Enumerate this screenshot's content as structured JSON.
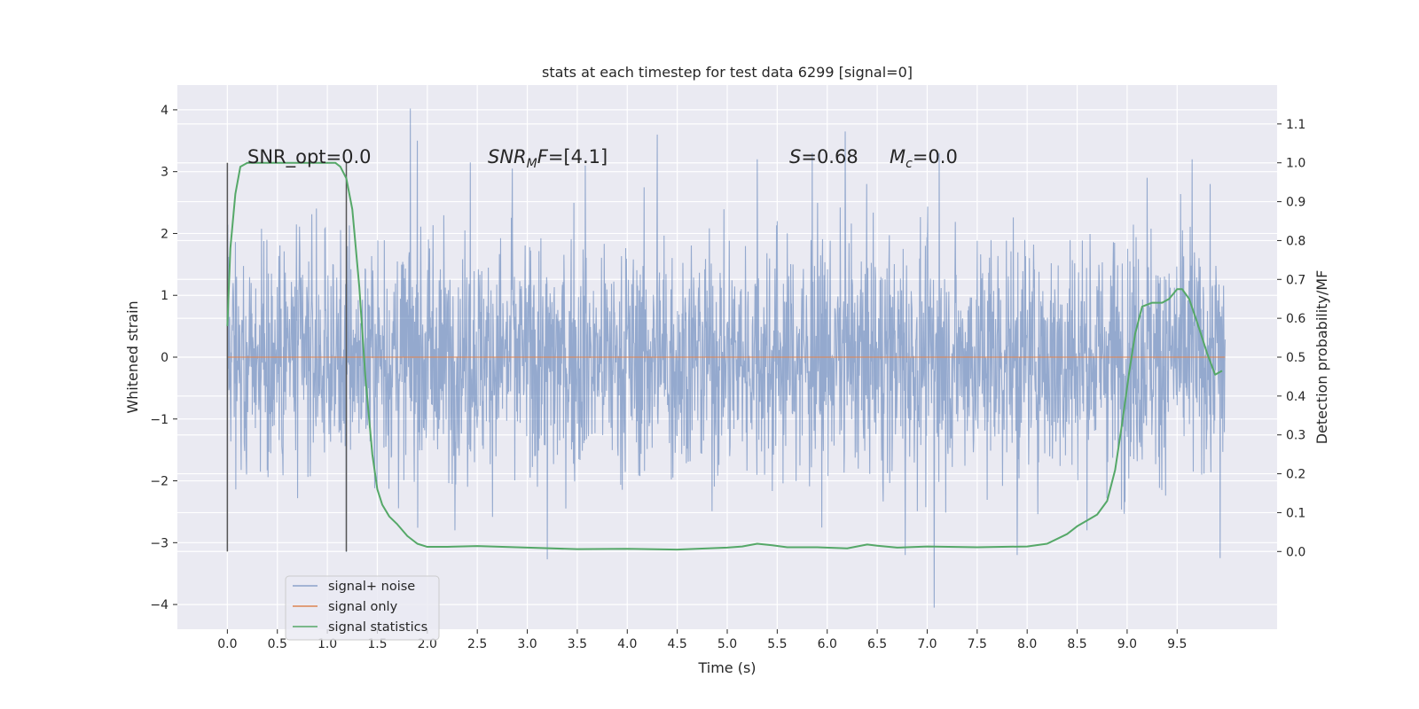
{
  "chart_data": {
    "type": "line",
    "title": "stats at each timestep for test data 6299 [signal=0]",
    "xlabel": "Time (s)",
    "ylabel_left": "Whitened strain",
    "ylabel_right": "Detection probability/MF",
    "xlim": [
      -0.5,
      10.5
    ],
    "ylim_left": [
      -4.4,
      4.4
    ],
    "ylim_right": [
      -0.2,
      1.2
    ],
    "x_ticks": [
      "0.0",
      "0.5",
      "1.0",
      "1.5",
      "2.0",
      "2.5",
      "3.0",
      "3.5",
      "4.0",
      "4.5",
      "5.0",
      "5.5",
      "6.0",
      "6.5",
      "7.0",
      "7.5",
      "8.0",
      "8.5",
      "9.0",
      "9.5"
    ],
    "y_ticks_left": [
      "4",
      "3",
      "2",
      "1",
      "0",
      "−1",
      "−2",
      "−3",
      "−4"
    ],
    "y_ticks_right": [
      "1.1",
      "1.0",
      "0.9",
      "0.8",
      "0.7",
      "0.6",
      "0.5",
      "0.4",
      "0.3",
      "0.2",
      "0.1",
      "0.0"
    ],
    "grid": true,
    "legend_position": "lower-left",
    "annotations": {
      "snr_opt": "SNR_opt=0.0",
      "snr_mf_label": "SNR",
      "snr_mf_sub": "M",
      "snr_mf_tail": "F",
      "snr_mf_value": "=[4.1]",
      "s_label": "S",
      "s_value": "=0.68",
      "mc_label": "M",
      "mc_sub": "c",
      "mc_value": "=0.0"
    },
    "markers_x": [
      0.0,
      1.19
    ],
    "series": [
      {
        "name": "signal+ noise",
        "color": "#4c72b0",
        "axis": "left",
        "x_range": [
          0.0,
          9.98
        ],
        "envelope_typical": [
          -1.3,
          1.3
        ],
        "extremes": [
          {
            "x": 0.0,
            "y": 3.1
          },
          {
            "x": 0.0,
            "y": -3.1
          },
          {
            "x": 1.19,
            "y": 3.15
          },
          {
            "x": 1.19,
            "y": -3.15
          },
          {
            "x": 1.83,
            "y": 4.02
          },
          {
            "x": 1.9,
            "y": 3.5
          },
          {
            "x": 2.43,
            "y": 3.15
          },
          {
            "x": 2.85,
            "y": 3.05
          },
          {
            "x": 3.2,
            "y": -3.27
          },
          {
            "x": 3.58,
            "y": 3.1
          },
          {
            "x": 4.3,
            "y": 3.6
          },
          {
            "x": 5.3,
            "y": 3.2
          },
          {
            "x": 5.85,
            "y": 3.3
          },
          {
            "x": 6.18,
            "y": 3.65
          },
          {
            "x": 6.78,
            "y": -3.2
          },
          {
            "x": 7.07,
            "y": -4.05
          },
          {
            "x": 7.12,
            "y": 3.3
          },
          {
            "x": 7.9,
            "y": -3.2
          },
          {
            "x": 9.2,
            "y": 2.9
          },
          {
            "x": 9.65,
            "y": 3.2
          },
          {
            "x": 9.93,
            "y": -3.25
          }
        ]
      },
      {
        "name": "signal only",
        "color": "#dd8452",
        "axis": "left",
        "x": [
          0.0,
          9.98
        ],
        "y": [
          0.0,
          0.0
        ]
      },
      {
        "name": "signal statistics",
        "color": "#55a868",
        "axis": "right",
        "x": [
          0.0,
          0.03,
          0.08,
          0.13,
          0.2,
          0.35,
          0.6,
          0.9,
          1.0,
          1.08,
          1.13,
          1.19,
          1.25,
          1.32,
          1.38,
          1.45,
          1.5,
          1.55,
          1.62,
          1.7,
          1.8,
          1.9,
          2.0,
          2.2,
          2.5,
          3.0,
          3.5,
          4.0,
          4.5,
          5.0,
          5.15,
          5.3,
          5.45,
          5.6,
          5.9,
          6.2,
          6.4,
          6.5,
          6.7,
          7.0,
          7.5,
          8.0,
          8.2,
          8.4,
          8.5,
          8.6,
          8.7,
          8.8,
          8.88,
          8.95,
          9.02,
          9.08,
          9.15,
          9.25,
          9.35,
          9.42,
          9.5,
          9.55,
          9.62,
          9.7,
          9.8,
          9.88,
          9.95
        ],
        "y": [
          0.58,
          0.78,
          0.92,
          0.99,
          1.0,
          1.0,
          1.0,
          1.0,
          1.0,
          1.0,
          0.99,
          0.96,
          0.88,
          0.68,
          0.45,
          0.25,
          0.16,
          0.12,
          0.09,
          0.07,
          0.04,
          0.02,
          0.012,
          0.012,
          0.014,
          0.01,
          0.006,
          0.007,
          0.005,
          0.01,
          0.013,
          0.02,
          0.016,
          0.011,
          0.011,
          0.008,
          0.018,
          0.015,
          0.01,
          0.013,
          0.011,
          0.013,
          0.02,
          0.045,
          0.065,
          0.08,
          0.095,
          0.13,
          0.21,
          0.33,
          0.46,
          0.56,
          0.63,
          0.64,
          0.64,
          0.65,
          0.675,
          0.675,
          0.65,
          0.59,
          0.51,
          0.455,
          0.465
        ]
      }
    ]
  }
}
